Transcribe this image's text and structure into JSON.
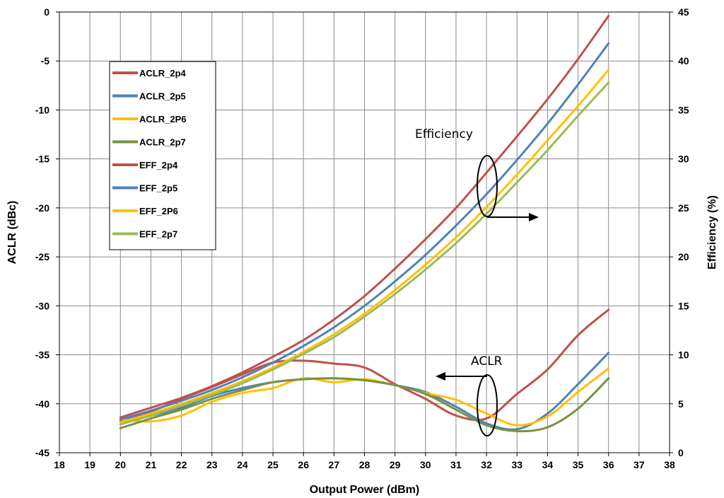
{
  "chart_data": {
    "type": "line",
    "title": "",
    "xlabel": "Output Power (dBm)",
    "ylabel": "ACLR (dBc)",
    "y2label": "Efficiency (%)",
    "xlim": [
      18,
      38
    ],
    "ylim": [
      -45,
      0
    ],
    "y2lim": [
      0,
      45
    ],
    "xticks": [
      "18",
      "19",
      "20",
      "21",
      "22",
      "23",
      "24",
      "25",
      "26",
      "27",
      "28",
      "29",
      "30",
      "31",
      "32",
      "33",
      "34",
      "35",
      "36",
      "37",
      "38"
    ],
    "yticks": [
      "0",
      "-5",
      "-10",
      "-15",
      "-20",
      "-25",
      "-30",
      "-35",
      "-40",
      "-45"
    ],
    "y2ticks": [
      "45",
      "40",
      "35",
      "30",
      "25",
      "20",
      "15",
      "10",
      "5",
      "0"
    ],
    "grid": true,
    "legend_position": "top-left",
    "x": [
      20,
      21,
      22,
      23,
      24,
      25,
      26,
      27,
      28,
      29,
      30,
      31,
      32,
      33,
      34,
      35,
      36
    ],
    "series": [
      {
        "name": "ACLR_2p4",
        "axis": "left",
        "color": "#c0504d",
        "values": [
          -41.8,
          -40.8,
          -39.5,
          -38.3,
          -37.0,
          -35.8,
          -35.6,
          -35.9,
          -36.3,
          -38.0,
          -39.5,
          -41.2,
          -41.5,
          -39.0,
          -36.5,
          -33.0,
          -30.4
        ]
      },
      {
        "name": "ACLR_2p5",
        "axis": "left",
        "color": "#4f81bd",
        "values": [
          -41.6,
          -41.2,
          -40.4,
          -39.2,
          -38.4,
          -37.8,
          -37.5,
          -37.4,
          -37.6,
          -38.1,
          -38.8,
          -40.3,
          -42.0,
          -42.6,
          -41.0,
          -38.0,
          -34.8
        ]
      },
      {
        "name": "ACLR_2P6",
        "axis": "left",
        "color": "#ffc000",
        "values": [
          -41.6,
          -41.8,
          -41.2,
          -39.8,
          -38.9,
          -38.4,
          -37.4,
          -37.8,
          -37.5,
          -38.1,
          -38.9,
          -39.6,
          -41.0,
          -42.2,
          -41.3,
          -38.8,
          -36.4
        ]
      },
      {
        "name": "ACLR_2p7",
        "axis": "left",
        "color": "#77933c",
        "values": [
          -42.5,
          -41.5,
          -40.6,
          -39.5,
          -38.6,
          -37.8,
          -37.5,
          -37.4,
          -37.6,
          -38.1,
          -39.0,
          -40.6,
          -42.2,
          -42.8,
          -42.4,
          -40.5,
          -37.4
        ]
      },
      {
        "name": "EFF_2p4",
        "axis": "right",
        "color": "#c0504d",
        "values": [
          3.6,
          4.6,
          5.6,
          6.8,
          8.2,
          9.8,
          11.5,
          13.6,
          16.0,
          18.8,
          21.8,
          25.0,
          28.6,
          32.3,
          36.1,
          40.2,
          44.6
        ]
      },
      {
        "name": "EFF_2p5",
        "axis": "right",
        "color": "#4f81bd",
        "values": [
          3.4,
          4.3,
          5.3,
          6.4,
          7.7,
          9.2,
          10.9,
          12.8,
          15.0,
          17.5,
          20.2,
          23.2,
          26.4,
          29.9,
          33.6,
          37.6,
          41.8
        ]
      },
      {
        "name": "EFF_2P6",
        "axis": "right",
        "color": "#ffc000",
        "values": [
          3.1,
          4.0,
          5.0,
          6.1,
          7.3,
          8.7,
          10.3,
          12.1,
          14.2,
          16.6,
          19.2,
          22.0,
          25.1,
          28.4,
          31.9,
          35.4,
          39.1
        ]
      },
      {
        "name": "EFF_2p7",
        "axis": "right",
        "color": "#9bbb59",
        "values": [
          2.9,
          3.8,
          4.8,
          5.9,
          7.1,
          8.5,
          10.1,
          11.8,
          13.9,
          16.2,
          18.7,
          21.4,
          24.4,
          27.6,
          30.9,
          34.4,
          37.8
        ]
      }
    ],
    "annotations": [
      {
        "text": "Efficiency"
      },
      {
        "text": "ACLR"
      }
    ]
  }
}
